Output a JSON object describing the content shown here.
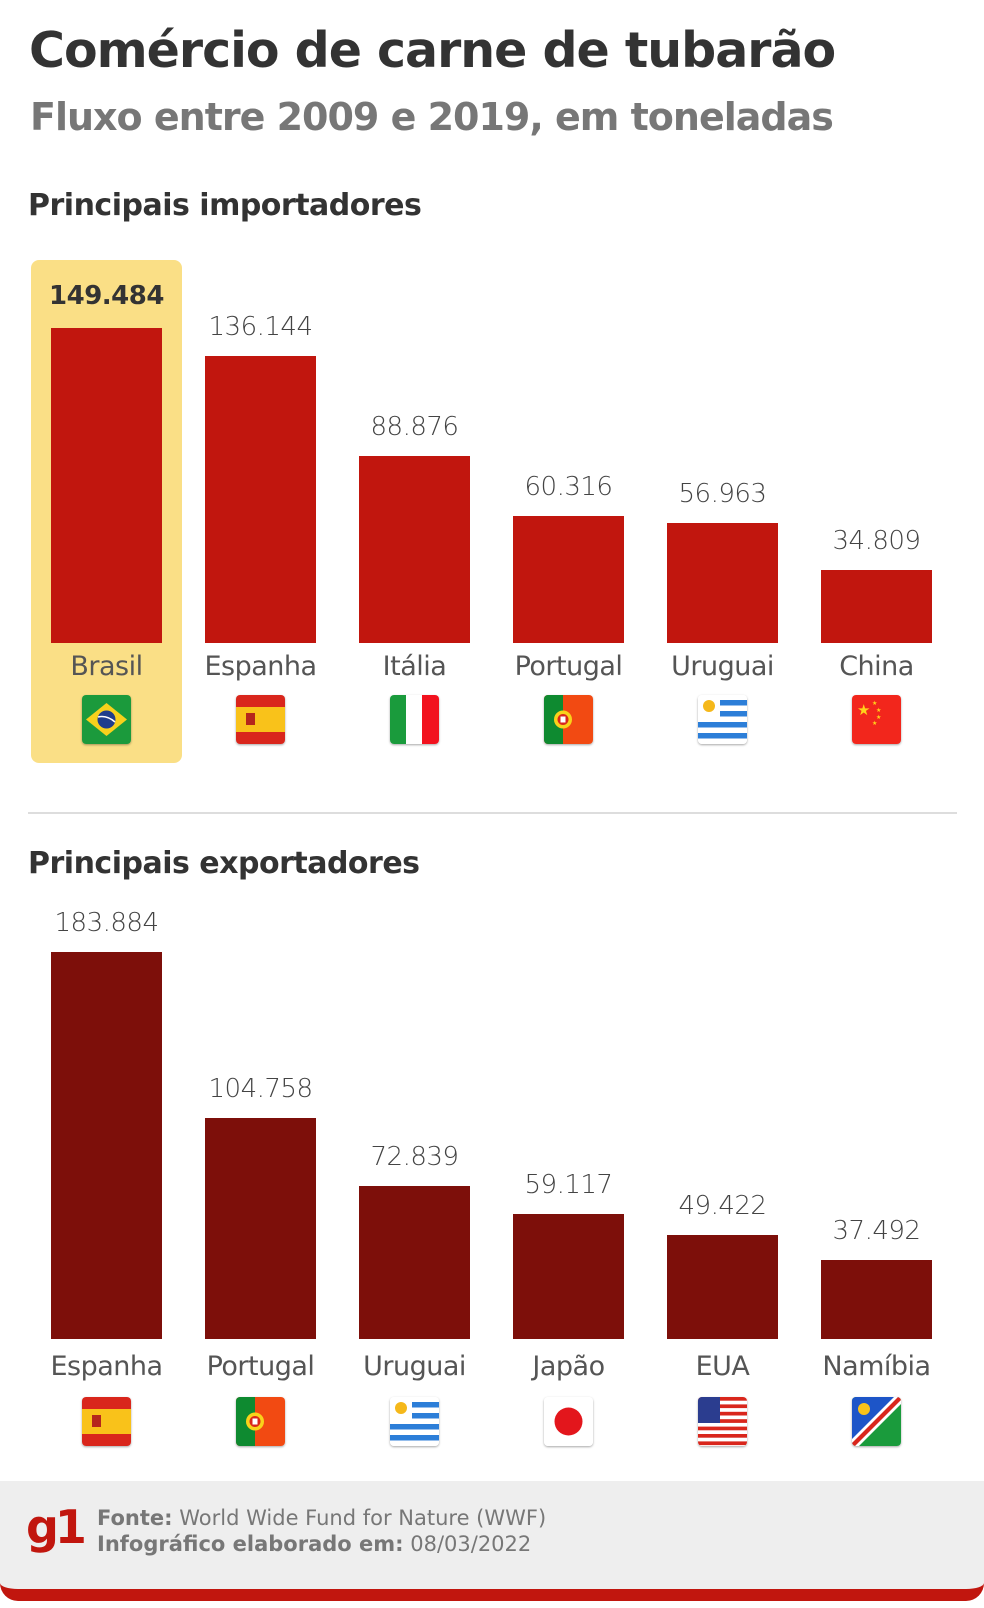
{
  "title": "Comércio de carne de tubarão",
  "subtitle": "Fluxo entre 2009 e 2019, em toneladas",
  "chart_data": [
    {
      "type": "bar",
      "title": "Principais importadores",
      "categories": [
        "Brasil",
        "Espanha",
        "Itália",
        "Portugal",
        "Uruguai",
        "China"
      ],
      "values": [
        149484,
        136144,
        88876,
        60316,
        56963,
        34809
      ],
      "labels": [
        "149.484",
        "136.144",
        "88.876",
        "60.316",
        "56.963",
        "34.809"
      ],
      "flags": [
        "brazil-flag",
        "spain-flag",
        "italy-flag",
        "portugal-flag",
        "uruguay-flag",
        "china-flag"
      ],
      "highlight": "Brasil",
      "color": "#c1160e",
      "highlight_color": "#fadf86"
    },
    {
      "type": "bar",
      "title": "Principais exportadores",
      "categories": [
        "Espanha",
        "Portugal",
        "Uruguai",
        "Japão",
        "EUA",
        "Namíbia"
      ],
      "values": [
        183884,
        104758,
        72839,
        59117,
        49422,
        37492
      ],
      "labels": [
        "183.884",
        "104.758",
        "72.839",
        "59.117",
        "49.422",
        "37.492"
      ],
      "flags": [
        "spain-flag",
        "portugal-flag",
        "uruguay-flag",
        "japan-flag",
        "usa-flag",
        "namibia-flag"
      ],
      "color": "#7d0f0a"
    }
  ],
  "footer": {
    "logo": "g1",
    "source_label": "Fonte:",
    "source": "World Wide Fund for Nature (WWF)",
    "date_label": "Infográfico elaborado em:",
    "date": "08/03/2022"
  }
}
